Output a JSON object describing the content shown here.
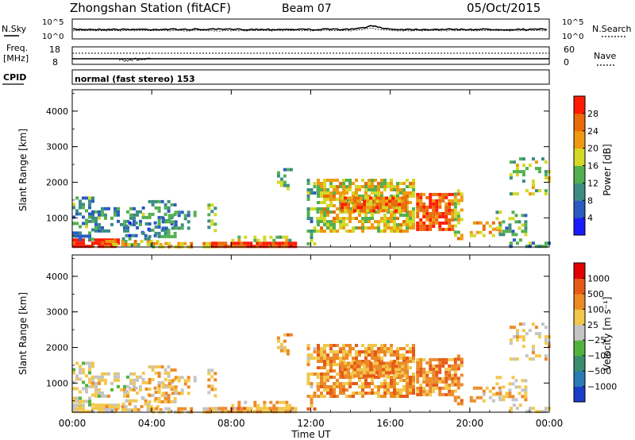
{
  "header": {
    "station": "Zhongshan Station (fitACF)",
    "beam": "Beam 07",
    "date": "05/Oct/2015"
  },
  "noise_panel": {
    "left_label": "N.Sky",
    "right_label": "N.Search",
    "left_ticks": [
      "10^5",
      "10^0"
    ],
    "right_ticks": [
      "10^5",
      "10^0"
    ]
  },
  "freq_panel": {
    "left_label_line1": "Freq.",
    "left_label_line2": "[MHz]",
    "right_label": "Nave",
    "left_ticks": [
      "18",
      "8"
    ],
    "right_ticks": [
      "60",
      "0"
    ]
  },
  "cpid": {
    "label": "CPID",
    "value": "normal (fast stereo) 153"
  },
  "x_axis": {
    "label": "Time UT",
    "ticks": [
      "00:00",
      "04:00",
      "08:00",
      "12:00",
      "16:00",
      "20:00",
      "00:00"
    ]
  },
  "chart_data": [
    {
      "type": "heatmap",
      "quantity": "power",
      "ylabel": "Slant Range [km]",
      "xlabel": "Time UT",
      "xlim": [
        0,
        24
      ],
      "ylim": [
        180,
        4600
      ],
      "yticks": [
        "1000",
        "2000",
        "3000",
        "4000"
      ],
      "colorbar": {
        "label": "Power [dB]",
        "ticks": [
          "4",
          "8",
          "12",
          "16",
          "20",
          "24",
          "28"
        ],
        "colors": [
          "#1a1aff",
          "#2a5cc0",
          "#3c8c82",
          "#52b050",
          "#d4d826",
          "#f09a12",
          "#e86a0a",
          "#ff1a00"
        ]
      }
    },
    {
      "type": "heatmap",
      "quantity": "velocity",
      "ylabel": "Slant Range [km]",
      "xlabel": "Time UT",
      "xlim": [
        0,
        24
      ],
      "ylim": [
        180,
        4600
      ],
      "yticks": [
        "1000",
        "2000",
        "3000",
        "4000"
      ],
      "colorbar": {
        "label": "Velocity [m s⁻¹]",
        "ticks": [
          "1000",
          "500",
          "100",
          "25",
          "−25",
          "−100",
          "−500",
          "−1000"
        ],
        "colors": [
          "#1a3cc8",
          "#2a7ab4",
          "#3c8c6e",
          "#50b43c",
          "#c4c4c4",
          "#f2c84c",
          "#ec8a28",
          "#e65a18",
          "#e00000"
        ]
      }
    }
  ]
}
